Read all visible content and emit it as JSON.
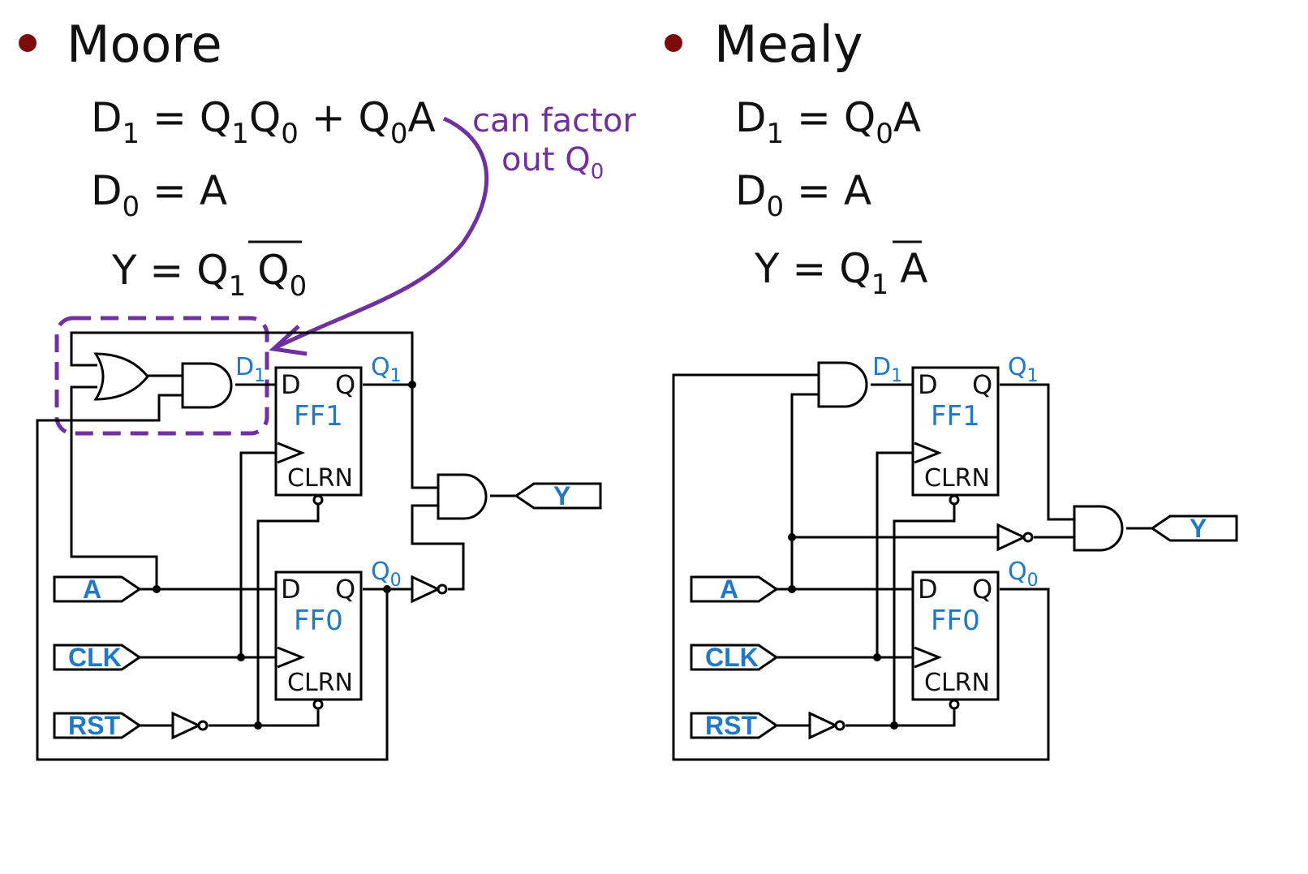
{
  "moore": {
    "title": "Moore",
    "eq1": {
      "lhs": "D",
      "lhs_sub": "1",
      "rhs_a": " = Q",
      "rhs_a_sub": "1",
      "rhs_b": "Q",
      "rhs_b_sub": "0",
      "rhs_c": " + Q",
      "rhs_c_sub": "0",
      "rhs_d": "A"
    },
    "eq2": {
      "lhs": "D",
      "lhs_sub": "0",
      "rhs": " = A"
    },
    "eq3": {
      "lhs": "Y = Q",
      "lhs_sub": "1",
      "bar_var": "Q",
      "bar_sub": "0"
    },
    "annotation": {
      "line1": "can factor",
      "line2": "out Q",
      "line2_sub": "0"
    },
    "ff1": {
      "name": "FF1",
      "d": "D",
      "q": "Q",
      "clrn": "CLRN"
    },
    "ff0": {
      "name": "FF0",
      "d": "D",
      "q": "Q",
      "clrn": "CLRN"
    },
    "signals": {
      "d1": "D",
      "d1_sub": "1",
      "q1": "Q",
      "q1_sub": "1",
      "q0": "Q",
      "q0_sub": "0"
    },
    "ports": {
      "a": "A",
      "clk": "CLK",
      "rst": "RST",
      "y": "Y"
    }
  },
  "mealy": {
    "title": "Mealy",
    "eq1": {
      "lhs": "D",
      "lhs_sub": "1",
      "rhs": " = Q",
      "rhs_sub": "0",
      "rhs_b": "A"
    },
    "eq2": {
      "lhs": "D",
      "lhs_sub": "0",
      "rhs": " = A"
    },
    "eq3": {
      "lhs": "Y = Q",
      "lhs_sub": "1",
      "bar_var": "A"
    },
    "ff1": {
      "name": "FF1",
      "d": "D",
      "q": "Q",
      "clrn": "CLRN"
    },
    "ff0": {
      "name": "FF0",
      "d": "D",
      "q": "Q",
      "clrn": "CLRN"
    },
    "signals": {
      "d1": "D",
      "d1_sub": "1",
      "q1": "Q",
      "q1_sub": "1",
      "q0": "Q",
      "q0_sub": "0"
    },
    "ports": {
      "a": "A",
      "clk": "CLK",
      "rst": "RST",
      "y": "Y"
    }
  },
  "colors": {
    "bullet": "#7a0c0c",
    "annotation": "#7030a0",
    "label_blue": "#1f78c8"
  }
}
